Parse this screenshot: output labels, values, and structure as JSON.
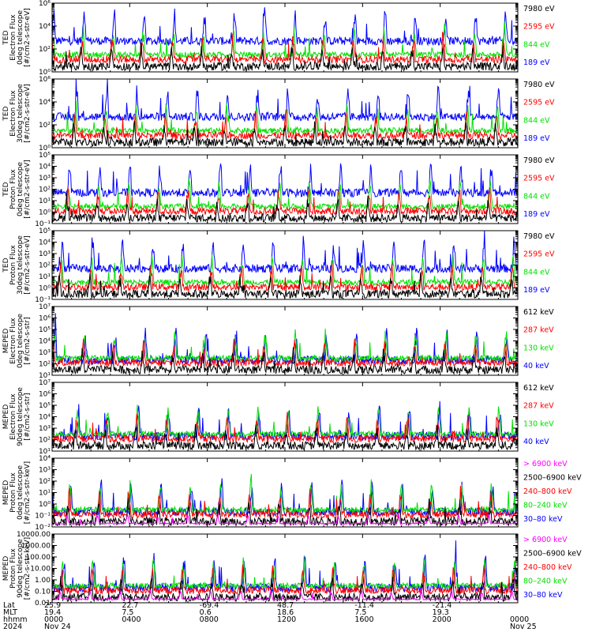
{
  "chart_data": {
    "type": "line",
    "colors": {
      "black": "#000000",
      "red": "#ff0000",
      "green": "#00e000",
      "blue": "#0000ff",
      "magenta": "#ff00ff"
    },
    "panels": [
      {
        "ylabel": [
          "TED",
          "Electron Flux",
          "0deg telescope",
          "[#/cm2-s-str-eV]"
        ],
        "log": true,
        "ylim": [
          1,
          1000000
        ],
        "yticks": [
          "10⁰",
          "10²",
          "10⁴",
          "10⁶"
        ],
        "legend": [
          {
            "text": "7980 eV",
            "color": "black"
          },
          {
            "text": "2595 eV",
            "color": "red"
          },
          {
            "text": "844 eV",
            "color": "green"
          },
          {
            "text": "189 eV",
            "color": "blue"
          }
        ]
      },
      {
        "ylabel": [
          "TED",
          "Electron Flux",
          "30deg telescope",
          "[#/cm2-s-str-eV]"
        ],
        "log": true,
        "ylim": [
          1,
          1000000
        ],
        "yticks": [
          "10⁰",
          "10²",
          "10⁴",
          "10⁶"
        ],
        "legend": [
          {
            "text": "7980 eV",
            "color": "black"
          },
          {
            "text": "2595 eV",
            "color": "red"
          },
          {
            "text": "844 eV",
            "color": "green"
          },
          {
            "text": "189 eV",
            "color": "blue"
          }
        ]
      },
      {
        "ylabel": [
          "TED",
          "Proton Flux",
          "0deg telescope",
          "[#/cm2-s-str-eV]"
        ],
        "log": true,
        "ylim": [
          0.1,
          100000
        ],
        "yticks": [
          "10⁻¹",
          "10⁰",
          "10¹",
          "10²",
          "10³",
          "10⁴",
          "10⁵"
        ],
        "legend": [
          {
            "text": "7980 eV",
            "color": "black"
          },
          {
            "text": "2595 eV",
            "color": "red"
          },
          {
            "text": "844 eV",
            "color": "green"
          },
          {
            "text": "189 eV",
            "color": "blue"
          }
        ]
      },
      {
        "ylabel": [
          "TED",
          "Proton Flux",
          "30deg telescope",
          "[#/cm2-s-str-eV]"
        ],
        "log": true,
        "ylim": [
          0.1,
          100000
        ],
        "yticks": [
          "10⁻¹",
          "10⁰",
          "10¹",
          "10²",
          "10³",
          "10⁴",
          "10⁵"
        ],
        "legend": [
          {
            "text": "7980 eV",
            "color": "black"
          },
          {
            "text": "2595 eV",
            "color": "red"
          },
          {
            "text": "844 eV",
            "color": "green"
          },
          {
            "text": "189 eV",
            "color": "blue"
          }
        ]
      },
      {
        "ylabel": [
          "MEPED",
          "Electron Flux",
          "0deg telescope",
          "[#/cm2-s-str]"
        ],
        "log": true,
        "ylim": [
          10,
          10000000
        ],
        "yticks": [
          "10¹",
          "10²",
          "10³",
          "10⁴",
          "10⁵",
          "10⁶",
          "10⁷"
        ],
        "legend": [
          {
            "text": "612 keV",
            "color": "black"
          },
          {
            "text": "287 keV",
            "color": "red"
          },
          {
            "text": "130 keV",
            "color": "green"
          },
          {
            "text": "40 keV",
            "color": "blue"
          }
        ]
      },
      {
        "ylabel": [
          "MEPED",
          "Electron Flux",
          "90deg telescope",
          "[#/cm2-s-str]"
        ],
        "log": true,
        "ylim": [
          10,
          10000000
        ],
        "yticks": [
          "10¹",
          "10²",
          "10³",
          "10⁴",
          "10⁵",
          "10⁶",
          "10⁷"
        ],
        "legend": [
          {
            "text": "612 keV",
            "color": "black"
          },
          {
            "text": "287 keV",
            "color": "red"
          },
          {
            "text": "130 keV",
            "color": "green"
          },
          {
            "text": "40 keV",
            "color": "blue"
          }
        ]
      },
      {
        "ylabel": [
          "MEPED",
          "Proton Flux",
          "0deg telescope",
          "[#/cm2-s-str-keV]"
        ],
        "log": true,
        "ylim": [
          0.01,
          10000
        ],
        "yticks": [
          "10⁻²",
          "10⁻¹",
          "10⁰",
          "10¹",
          "10²",
          "10³",
          "10⁴"
        ],
        "legend": [
          {
            "text": "> 6900 keV",
            "color": "magenta"
          },
          {
            "text": "2500–6900 keV",
            "color": "black"
          },
          {
            "text": "240–800 keV",
            "color": "red"
          },
          {
            "text": "80–240 keV",
            "color": "green"
          },
          {
            "text": "30–80 keV",
            "color": "blue"
          }
        ]
      },
      {
        "ylabel": [
          "MEPED",
          "Proton Flux",
          "90deg telescope",
          "[#/cm2-s-str-keV]"
        ],
        "log": true,
        "ylim": [
          0.01,
          10000
        ],
        "yticks": [
          "0.01",
          "0.10",
          "1.00",
          "10.00",
          "100.00",
          "1000.00",
          "10000.00"
        ],
        "legend": [
          {
            "text": "> 6900 keV",
            "color": "magenta"
          },
          {
            "text": "2500–6900 keV",
            "color": "black"
          },
          {
            "text": "240–800 keV",
            "color": "red"
          },
          {
            "text": "80–240 keV",
            "color": "green"
          },
          {
            "text": "30–80 keV",
            "color": "blue"
          }
        ]
      }
    ],
    "x_axis": {
      "row_labels": [
        "Lat",
        "MLT",
        "hhmm",
        "2024"
      ],
      "ticks": [
        {
          "t": 0,
          "lat": "25.9",
          "mlt": "19.4",
          "hhmm": "0000",
          "date": "Nov 24"
        },
        {
          "t": 4,
          "lat": "22.7",
          "mlt": "7.5",
          "hhmm": "0400",
          "date": ""
        },
        {
          "t": 8,
          "lat": "-69.4",
          "mlt": "0.6",
          "hhmm": "0800",
          "date": ""
        },
        {
          "t": 12,
          "lat": "48.7",
          "mlt": "18.6",
          "hhmm": "1200",
          "date": ""
        },
        {
          "t": 16,
          "lat": "-11.4",
          "mlt": "7.5",
          "hhmm": "1600",
          "date": ""
        },
        {
          "t": 20,
          "lat": "-21.4",
          "mlt": "19.3",
          "hhmm": "2000",
          "date": ""
        },
        {
          "t": 24,
          "lat": "",
          "mlt": "",
          "hhmm": "0000",
          "date": "Nov 25"
        }
      ],
      "xlim": [
        0,
        24
      ]
    }
  }
}
